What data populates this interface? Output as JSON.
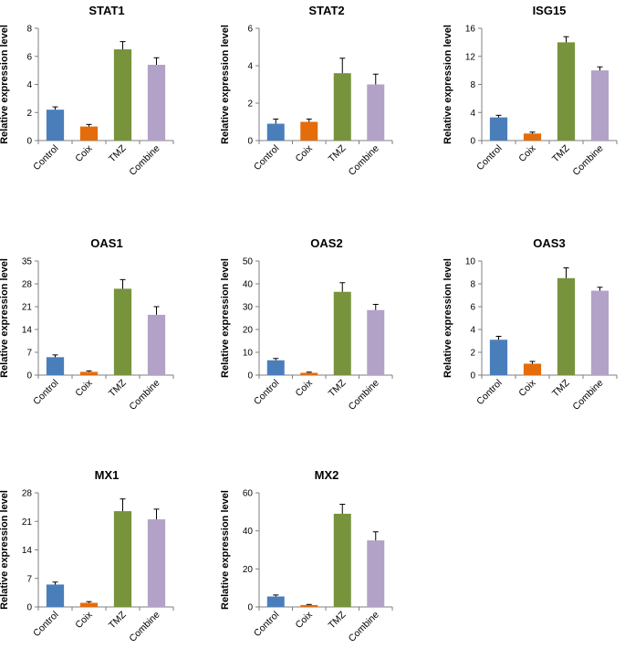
{
  "chart_data": [
    {
      "type": "bar",
      "title": "STAT1",
      "ylabel": "Relative expression level",
      "categories": [
        "Control",
        "Coix",
        "TMZ",
        "Combine"
      ],
      "values": [
        2.2,
        1.0,
        6.5,
        5.4
      ],
      "errors": [
        0.2,
        0.15,
        0.55,
        0.5
      ],
      "ylim": [
        0,
        8
      ],
      "yticks": [
        0,
        2,
        4,
        6,
        8
      ],
      "colors": [
        "#4a7ebb",
        "#e46c0a",
        "#77933c",
        "#b3a2c7"
      ]
    },
    {
      "type": "bar",
      "title": "STAT2",
      "ylabel": "Relative expression level",
      "categories": [
        "Control",
        "Coix",
        "TMZ",
        "Combine"
      ],
      "values": [
        0.9,
        1.0,
        3.6,
        3.0
      ],
      "errors": [
        0.25,
        0.15,
        0.8,
        0.55
      ],
      "ylim": [
        0,
        6
      ],
      "yticks": [
        0,
        2,
        4,
        6
      ],
      "colors": [
        "#4a7ebb",
        "#e46c0a",
        "#77933c",
        "#b3a2c7"
      ]
    },
    {
      "type": "bar",
      "title": "ISG15",
      "ylabel": "Relative expression level",
      "categories": [
        "Control",
        "Coix",
        "TMZ",
        "Combine"
      ],
      "values": [
        3.3,
        1.0,
        14.0,
        10.0
      ],
      "errors": [
        0.3,
        0.2,
        0.8,
        0.5
      ],
      "ylim": [
        0,
        16
      ],
      "yticks": [
        0,
        4,
        8,
        12,
        16
      ],
      "colors": [
        "#4a7ebb",
        "#e46c0a",
        "#77933c",
        "#b3a2c7"
      ]
    },
    {
      "type": "bar",
      "title": "OAS1",
      "ylabel": "Relative expression level",
      "categories": [
        "Control",
        "Coix",
        "TMZ",
        "Combine"
      ],
      "values": [
        5.5,
        1.0,
        26.5,
        18.5
      ],
      "errors": [
        0.7,
        0.3,
        2.8,
        2.5
      ],
      "ylim": [
        0,
        35
      ],
      "yticks": [
        0,
        7,
        14,
        21,
        28,
        35
      ],
      "colors": [
        "#4a7ebb",
        "#e46c0a",
        "#77933c",
        "#b3a2c7"
      ]
    },
    {
      "type": "bar",
      "title": "OAS2",
      "ylabel": "Relative expression level",
      "categories": [
        "Control",
        "Coix",
        "TMZ",
        "Combine"
      ],
      "values": [
        6.5,
        1.0,
        36.5,
        28.5
      ],
      "errors": [
        0.8,
        0.3,
        4.0,
        2.5
      ],
      "ylim": [
        0,
        50
      ],
      "yticks": [
        0,
        10,
        20,
        30,
        40,
        50
      ],
      "colors": [
        "#4a7ebb",
        "#e46c0a",
        "#77933c",
        "#b3a2c7"
      ]
    },
    {
      "type": "bar",
      "title": "OAS3",
      "ylabel": "Relative expression level",
      "categories": [
        "Control",
        "Coix",
        "TMZ",
        "Combine"
      ],
      "values": [
        3.1,
        1.0,
        8.5,
        7.4
      ],
      "errors": [
        0.3,
        0.2,
        0.9,
        0.3
      ],
      "ylim": [
        0,
        10
      ],
      "yticks": [
        0,
        2,
        4,
        6,
        8,
        10
      ],
      "colors": [
        "#4a7ebb",
        "#e46c0a",
        "#77933c",
        "#b3a2c7"
      ]
    },
    {
      "type": "bar",
      "title": "MX1",
      "ylabel": "Relative expression level",
      "categories": [
        "Control",
        "Coix",
        "TMZ",
        "Combine"
      ],
      "values": [
        5.5,
        1.0,
        23.5,
        21.5
      ],
      "errors": [
        0.6,
        0.3,
        3.0,
        2.5
      ],
      "ylim": [
        0,
        28
      ],
      "yticks": [
        0,
        7,
        14,
        21,
        28
      ],
      "colors": [
        "#4a7ebb",
        "#e46c0a",
        "#77933c",
        "#b3a2c7"
      ]
    },
    {
      "type": "bar",
      "title": "MX2",
      "ylabel": "Relative expression level",
      "categories": [
        "Control",
        "Coix",
        "TMZ",
        "Combine"
      ],
      "values": [
        5.5,
        1.0,
        49.0,
        35.0
      ],
      "errors": [
        0.8,
        0.3,
        5.0,
        4.5
      ],
      "ylim": [
        0,
        60
      ],
      "yticks": [
        0,
        20,
        40,
        60
      ],
      "colors": [
        "#4a7ebb",
        "#e46c0a",
        "#77933c",
        "#b3a2c7"
      ]
    }
  ]
}
